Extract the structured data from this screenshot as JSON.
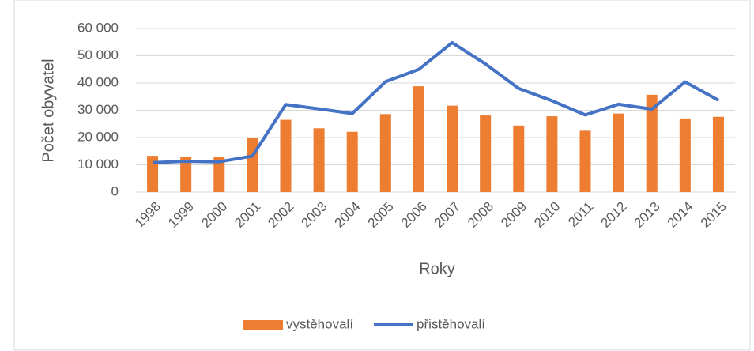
{
  "chart_data": {
    "type": "bar_line",
    "y_label": "Počet obyvatel",
    "x_label": "Roky",
    "categories": [
      "1998",
      "1999",
      "2000",
      "2001",
      "2002",
      "2003",
      "2004",
      "2005",
      "2006",
      "2007",
      "2008",
      "2009",
      "2010",
      "2011",
      "2012",
      "2013",
      "2014",
      "2015"
    ],
    "series": [
      {
        "name": "vystěhovalí",
        "type": "bar",
        "color": "#ed7d31",
        "values": [
          13300,
          13000,
          12800,
          19800,
          26500,
          23400,
          22100,
          28600,
          38800,
          31700,
          28100,
          24400,
          27800,
          22500,
          28800,
          35700,
          27000,
          27600
        ]
      },
      {
        "name": "přistěhovalí",
        "type": "line",
        "color": "#4472c4",
        "values": [
          10800,
          11300,
          11100,
          13200,
          32100,
          30500,
          28800,
          40500,
          45000,
          54800,
          47000,
          38000,
          33500,
          28300,
          32200,
          30400,
          40400,
          33700
        ]
      }
    ],
    "ylim": [
      0,
      60000
    ],
    "yticks": [
      0,
      {
        "value": 10000,
        "label": "10 000"
      },
      {
        "value": 20000,
        "label": "20 000"
      },
      {
        "value": 30000,
        "label": "30 000"
      },
      {
        "value": 40000,
        "label": "40 000"
      },
      {
        "value": 50000,
        "label": "50 000"
      },
      {
        "value": 60000,
        "label": "60 000"
      }
    ],
    "grid": true,
    "legend": "bottom"
  }
}
